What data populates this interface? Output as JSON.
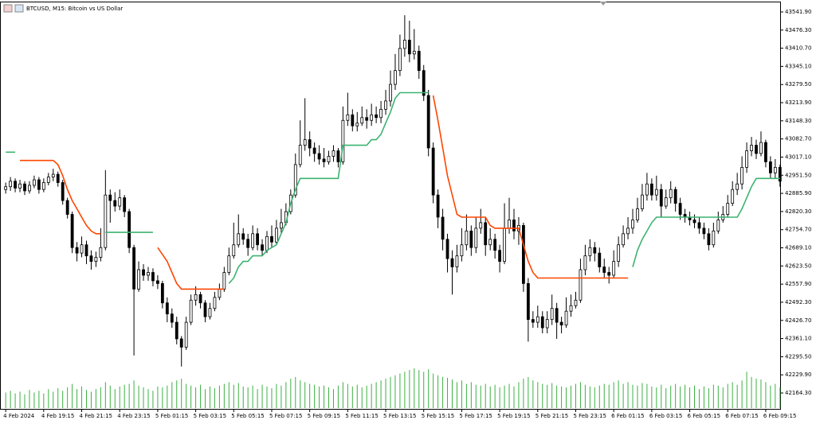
{
  "chart_data": {
    "type": "candlestick",
    "title": "BTCUSD, M15: Bitcoin vs US Dollar",
    "open": [
      42900,
      42910,
      42930,
      42905,
      42920,
      42895,
      42915,
      42935,
      42900,
      42925,
      42945,
      42955,
      42925,
      42860,
      42810,
      42690,
      42670,
      42700,
      42660,
      42640,
      42655,
      42690,
      42880,
      42860,
      42840,
      42870,
      42820,
      42690,
      42540,
      42610,
      42590,
      42600,
      42570,
      42560,
      42490,
      42450,
      42420,
      42360,
      42330,
      42420,
      42500,
      42520,
      42490,
      42440,
      42470,
      42510,
      42540,
      42600,
      42660,
      42700,
      42740,
      42720,
      42690,
      42740,
      42700,
      42680,
      42730,
      42710,
      42760,
      42780,
      42820,
      42880,
      42990,
      43060,
      43080,
      43050,
      43030,
      43010,
      43000,
      43020,
      43040,
      43000,
      43150,
      43170,
      43130,
      43140,
      43160,
      43150,
      43170,
      43160,
      43190,
      43220,
      43280,
      43330,
      43410,
      43440,
      43390,
      43400,
      43330,
      43240,
      43050,
      42880,
      42800,
      42720,
      42650,
      42620,
      42660,
      42700,
      42750,
      42690,
      42760,
      42780,
      42700,
      42720,
      42680,
      42640,
      42760,
      42790,
      42750,
      42770,
      42560,
      42430,
      42420,
      42440,
      42400,
      42430,
      42470,
      42420,
      42410,
      42460,
      42480,
      42500,
      42610,
      42660,
      42690,
      42670,
      42620,
      42600,
      42590,
      42640,
      42700,
      42740,
      42760,
      42790,
      42830,
      42880,
      42920,
      42880,
      42900,
      42840,
      42870,
      42900,
      42850,
      42810,
      42800,
      42790,
      42780,
      42760,
      42740,
      42700,
      42750,
      42790,
      42810,
      42850,
      42900,
      42920,
      42980,
      43040,
      43060,
      43030,
      43070,
      43000,
      42960,
      42980
    ],
    "high": [
      42925,
      42945,
      42940,
      42935,
      42930,
      42930,
      42950,
      42945,
      42940,
      42960,
      42975,
      42965,
      42935,
      42870,
      42820,
      42710,
      42730,
      42715,
      42680,
      42675,
      42760,
      42970,
      42900,
      42890,
      42900,
      42880,
      42830,
      42700,
      42640,
      42630,
      42620,
      42615,
      42590,
      42570,
      42510,
      42470,
      42440,
      42370,
      42440,
      42520,
      42550,
      42530,
      42500,
      42490,
      42530,
      42560,
      42620,
      42690,
      42780,
      42810,
      42760,
      42740,
      42770,
      42760,
      42720,
      42750,
      42770,
      42790,
      42830,
      42850,
      42900,
      43030,
      43150,
      43230,
      43110,
      43070,
      43060,
      43050,
      43040,
      43060,
      43050,
      43200,
      43250,
      43190,
      43180,
      43200,
      43190,
      43210,
      43200,
      43220,
      43260,
      43330,
      43390,
      43460,
      43530,
      43510,
      43480,
      43420,
      43350,
      43260,
      43070,
      42900,
      42830,
      42740,
      42680,
      42700,
      42760,
      42810,
      42770,
      42800,
      42830,
      42800,
      42760,
      42740,
      42700,
      42850,
      42870,
      42830,
      42800,
      42780,
      42580,
      42460,
      42480,
      42460,
      42460,
      42520,
      42490,
      42440,
      42510,
      42520,
      42530,
      42650,
      42700,
      42720,
      42710,
      42690,
      42650,
      42620,
      42680,
      42730,
      42770,
      42800,
      42830,
      42870,
      42920,
      42960,
      42940,
      42950,
      42920,
      42900,
      42930,
      42910,
      42870,
      42830,
      42820,
      42810,
      42800,
      42780,
      42760,
      42780,
      42820,
      42840,
      42880,
      42930,
      42960,
      43020,
      43070,
      43090,
      43080,
      43110,
      43080,
      43020,
      43010,
      42990
    ],
    "low": [
      42885,
      42895,
      42890,
      42890,
      42880,
      42885,
      42905,
      42885,
      42890,
      42915,
      42930,
      42910,
      42845,
      42795,
      42670,
      42640,
      42655,
      42630,
      42610,
      42620,
      42640,
      42680,
      42780,
      42820,
      42825,
      42800,
      42670,
      42300,
      42530,
      42570,
      42570,
      42550,
      42540,
      42470,
      42420,
      42400,
      42340,
      42260,
      42320,
      42410,
      42480,
      42470,
      42420,
      42430,
      42460,
      42500,
      42530,
      42590,
      42650,
      42690,
      42700,
      42660,
      42680,
      42680,
      42660,
      42670,
      42690,
      42700,
      42740,
      42770,
      42810,
      42870,
      42980,
      43040,
      43020,
      43000,
      42990,
      42980,
      42990,
      43000,
      42980,
      42990,
      43130,
      43110,
      43110,
      43130,
      43120,
      43130,
      43140,
      43140,
      43170,
      43200,
      43260,
      43310,
      43380,
      43360,
      43370,
      43300,
      43220,
      43020,
      42850,
      42760,
      42680,
      42600,
      42520,
      42600,
      42640,
      42680,
      42660,
      42670,
      42740,
      42660,
      42680,
      42650,
      42600,
      42630,
      42740,
      42720,
      42700,
      42530,
      42350,
      42400,
      42400,
      42380,
      42380,
      42410,
      42360,
      42380,
      42400,
      42440,
      42470,
      42490,
      42590,
      42640,
      42640,
      42600,
      42580,
      42560,
      42580,
      42620,
      42690,
      42720,
      42740,
      42780,
      42820,
      42860,
      42860,
      42860,
      42800,
      42830,
      42850,
      42820,
      42790,
      42780,
      42770,
      42760,
      42740,
      42720,
      42680,
      42690,
      42740,
      42780,
      42800,
      42840,
      42880,
      42900,
      42960,
      43020,
      43010,
      43020,
      42980,
      42940,
      42940,
      42910
    ],
    "close": [
      42910,
      42930,
      42905,
      42920,
      42895,
      42915,
      42935,
      42900,
      42925,
      42945,
      42955,
      42925,
      42860,
      42810,
      42690,
      42670,
      42700,
      42660,
      42640,
      42655,
      42690,
      42880,
      42860,
      42840,
      42870,
      42820,
      42690,
      42540,
      42610,
      42590,
      42600,
      42570,
      42560,
      42490,
      42450,
      42420,
      42360,
      42330,
      42420,
      42500,
      42520,
      42490,
      42440,
      42470,
      42510,
      42540,
      42600,
      42660,
      42700,
      42740,
      42720,
      42690,
      42740,
      42700,
      42680,
      42730,
      42710,
      42760,
      42780,
      42820,
      42880,
      42990,
      43060,
      43080,
      43050,
      43030,
      43010,
      43000,
      43020,
      43040,
      43000,
      43150,
      43170,
      43130,
      43140,
      43160,
      43150,
      43170,
      43160,
      43190,
      43220,
      43280,
      43330,
      43410,
      43440,
      43390,
      43400,
      43330,
      43240,
      43050,
      42880,
      42800,
      42720,
      42650,
      42620,
      42660,
      42700,
      42750,
      42690,
      42760,
      42780,
      42700,
      42720,
      42680,
      42640,
      42760,
      42790,
      42750,
      42770,
      42560,
      42430,
      42420,
      42440,
      42400,
      42430,
      42470,
      42420,
      42410,
      42460,
      42480,
      42500,
      42610,
      42660,
      42690,
      42670,
      42620,
      42600,
      42590,
      42640,
      42700,
      42740,
      42760,
      42790,
      42830,
      42880,
      42920,
      42880,
      42900,
      42840,
      42870,
      42900,
      42850,
      42810,
      42800,
      42790,
      42780,
      42760,
      42740,
      42700,
      42750,
      42790,
      42810,
      42850,
      42900,
      42920,
      42980,
      43040,
      43060,
      43030,
      43070,
      43000,
      42960,
      42980,
      42930
    ],
    "candle_colors": {
      "bull": "#ffffff",
      "bear": "#000000",
      "outline": "#000000"
    },
    "indicator": [
      {
        "color": "#3cb371",
        "values": [
          43035,
          43035,
          43035,
          null,
          null,
          null,
          null,
          null,
          null,
          null,
          null,
          null,
          null,
          null,
          null,
          null,
          null,
          null,
          null,
          null,
          null,
          42745,
          42745,
          42745,
          42745,
          42745,
          42745,
          42745,
          42745,
          42745,
          42745,
          42745,
          null,
          null,
          null,
          null,
          null,
          null,
          null,
          null,
          null,
          null,
          null,
          null,
          null,
          null,
          null,
          42560,
          42580,
          42620,
          42640,
          42640,
          42660,
          42660,
          42660,
          42680,
          42690,
          42700,
          42740,
          42780,
          42850,
          42900,
          42940,
          42940,
          42940,
          42940,
          42940,
          42940,
          42940,
          42940,
          42940,
          43060,
          43060,
          43060,
          43060,
          43060,
          43060,
          43080,
          43080,
          43100,
          43140,
          43180,
          43230,
          43250,
          43250,
          43250,
          43250,
          43250,
          43250,
          43250,
          null,
          null,
          null,
          null,
          null,
          null,
          null,
          null,
          null,
          null,
          null,
          null,
          null,
          null,
          null,
          null,
          null,
          null,
          null,
          null,
          null,
          null,
          null,
          null,
          null,
          null,
          null,
          null,
          null,
          null,
          null,
          null,
          null,
          null,
          null,
          null,
          null,
          null,
          null,
          null,
          null,
          null,
          42620,
          42680,
          42720,
          42750,
          42780,
          42800,
          42800,
          42800,
          42800,
          42800,
          42800,
          42800,
          42800,
          42800,
          42800,
          42800,
          42800,
          42800,
          42800,
          42800,
          42800,
          42800,
          42800,
          42830,
          42870,
          42910,
          42940,
          42940,
          42940,
          42940,
          42940,
          42940
        ]
      },
      {
        "color": "#ff4500",
        "values": [
          null,
          null,
          null,
          43005,
          43005,
          43005,
          43005,
          43005,
          43005,
          43005,
          43005,
          42990,
          42950,
          42900,
          42860,
          42830,
          42800,
          42770,
          42750,
          42740,
          42740,
          null,
          null,
          null,
          null,
          null,
          null,
          null,
          null,
          null,
          null,
          null,
          42690,
          42665,
          42640,
          42600,
          42560,
          42540,
          42540,
          42540,
          42540,
          42540,
          42540,
          42540,
          42540,
          42540,
          42540,
          null,
          null,
          null,
          null,
          null,
          null,
          null,
          null,
          null,
          null,
          null,
          null,
          null,
          null,
          null,
          null,
          null,
          null,
          null,
          null,
          null,
          null,
          null,
          null,
          null,
          null,
          null,
          null,
          null,
          null,
          null,
          null,
          null,
          null,
          null,
          null,
          null,
          null,
          null,
          null,
          null,
          null,
          null,
          43240,
          43150,
          43050,
          42950,
          42880,
          42810,
          42800,
          42800,
          42800,
          42800,
          42800,
          42800,
          42770,
          42760,
          42760,
          42760,
          42760,
          42760,
          42760,
          42700,
          42640,
          42600,
          42580,
          42580,
          42580,
          42580,
          42580,
          42580,
          42580,
          42580,
          42580,
          42580,
          42580,
          42580,
          42580,
          42580,
          42580,
          42580,
          42580,
          42580,
          42580,
          42580,
          null,
          null,
          null,
          null,
          null,
          null,
          null,
          null,
          null,
          null,
          null,
          null,
          null,
          null,
          null,
          null,
          null,
          null,
          null,
          null,
          null,
          null,
          null,
          null,
          null,
          null,
          null,
          null,
          null,
          null,
          null,
          null
        ]
      }
    ],
    "volume": {
      "color": "#3cb043",
      "values": [
        18,
        20,
        17,
        19,
        16,
        21,
        18,
        20,
        17,
        22,
        19,
        23,
        20,
        24,
        28,
        22,
        25,
        21,
        19,
        22,
        24,
        30,
        26,
        22,
        25,
        27,
        28,
        32,
        26,
        24,
        22,
        20,
        25,
        24,
        26,
        30,
        32,
        34,
        28,
        26,
        24,
        27,
        22,
        25,
        23,
        26,
        28,
        30,
        27,
        29,
        25,
        24,
        26,
        22,
        27,
        25,
        23,
        28,
        26,
        30,
        34,
        36,
        32,
        30,
        28,
        27,
        25,
        26,
        24,
        22,
        26,
        30,
        28,
        25,
        27,
        24,
        26,
        28,
        30,
        32,
        34,
        36,
        38,
        40,
        42,
        44,
        46,
        44,
        42,
        45,
        40,
        38,
        36,
        35,
        33,
        30,
        32,
        28,
        30,
        27,
        26,
        28,
        25,
        27,
        24,
        26,
        28,
        25,
        30,
        34,
        36,
        32,
        30,
        28,
        27,
        29,
        26,
        25,
        24,
        26,
        28,
        30,
        27,
        25,
        24,
        26,
        28,
        27,
        30,
        32,
        28,
        30,
        27,
        26,
        29,
        28,
        25,
        24,
        27,
        23,
        26,
        28,
        25,
        27,
        24,
        26,
        22,
        25,
        23,
        27,
        26,
        24,
        28,
        30,
        27,
        32,
        42,
        36,
        34,
        33,
        30,
        26,
        28,
        24
      ]
    },
    "xlim": [
      -1.2,
      163.2
    ],
    "xticks": [
      {
        "value": 0,
        "label": "4 Feb 2024"
      },
      {
        "value": 8,
        "label": "4 Feb 19:15"
      },
      {
        "value": 16,
        "label": "4 Feb 21:15"
      },
      {
        "value": 24,
        "label": "4 Feb 23:15"
      },
      {
        "value": 32,
        "label": "5 Feb 01:15"
      },
      {
        "value": 40,
        "label": "5 Feb 03:15"
      },
      {
        "value": 48,
        "label": "5 Feb 05:15"
      },
      {
        "value": 56,
        "label": "5 Feb 07:15"
      },
      {
        "value": 64,
        "label": "5 Feb 09:15"
      },
      {
        "value": 72,
        "label": "5 Feb 11:15"
      },
      {
        "value": 80,
        "label": "5 Feb 13:15"
      },
      {
        "value": 88,
        "label": "5 Feb 15:15"
      },
      {
        "value": 96,
        "label": "5 Feb 17:15"
      },
      {
        "value": 104,
        "label": "5 Feb 19:15"
      },
      {
        "value": 112,
        "label": "5 Feb 21:15"
      },
      {
        "value": 120,
        "label": "5 Feb 23:15"
      },
      {
        "value": 128,
        "label": "6 Feb 01:15"
      },
      {
        "value": 136,
        "label": "6 Feb 03:15"
      },
      {
        "value": 144,
        "label": "6 Feb 05:15"
      },
      {
        "value": 152,
        "label": "6 Feb 07:15"
      },
      {
        "value": 160,
        "label": "6 Feb 09:15"
      }
    ],
    "ylim": [
      42106.8,
      43576.4
    ],
    "yticks": [
      {
        "value": 43541.9,
        "label": "43541.90"
      },
      {
        "value": 43476.3,
        "label": "43476.30"
      },
      {
        "value": 43410.7,
        "label": "43410.70"
      },
      {
        "value": 43345.1,
        "label": "43345.10"
      },
      {
        "value": 43279.5,
        "label": "43279.50"
      },
      {
        "value": 43213.9,
        "label": "43213.90"
      },
      {
        "value": 43148.3,
        "label": "43148.30"
      },
      {
        "value": 43082.7,
        "label": "43082.70"
      },
      {
        "value": 43017.1,
        "label": "43017.10"
      },
      {
        "value": 42951.5,
        "label": "42951.50"
      },
      {
        "value": 42885.9,
        "label": "42885.90"
      },
      {
        "value": 42820.3,
        "label": "42820.30"
      },
      {
        "value": 42754.7,
        "label": "42754.70"
      },
      {
        "value": 42689.1,
        "label": "42689.10"
      },
      {
        "value": 42623.5,
        "label": "42623.50"
      },
      {
        "value": 42557.9,
        "label": "42557.90"
      },
      {
        "value": 42492.3,
        "label": "42492.30"
      },
      {
        "value": 42426.7,
        "label": "42426.70"
      },
      {
        "value": 42361.1,
        "label": "42361.10"
      },
      {
        "value": 42295.5,
        "label": "42295.50"
      },
      {
        "value": 42229.9,
        "label": "42229.90"
      },
      {
        "value": 42164.3,
        "label": "42164.30"
      }
    ],
    "grid": false
  }
}
